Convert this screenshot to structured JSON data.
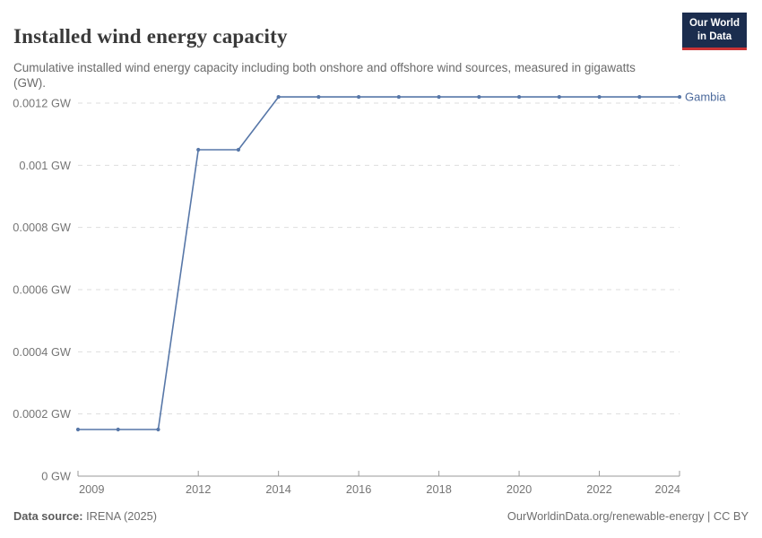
{
  "header": {
    "title": "Installed wind energy capacity",
    "subtitle": "Cumulative installed wind energy capacity including both onshore and offshore wind sources, measured in gigawatts (GW).",
    "logo": {
      "line1": "Our World",
      "line2": "in Data",
      "bg_color": "#1b2d4e",
      "accent_color": "#ca3335"
    }
  },
  "footer": {
    "data_source_label": "Data source:",
    "data_source_value": " IRENA (2025)",
    "attribution": "OurWorldinData.org/renewable-energy | CC BY"
  },
  "chart_data": {
    "type": "line",
    "title": "Installed wind energy capacity",
    "unit": "GW",
    "x": [
      2009,
      2010,
      2011,
      2012,
      2013,
      2014,
      2015,
      2016,
      2017,
      2018,
      2019,
      2020,
      2021,
      2022,
      2023,
      2024
    ],
    "series": [
      {
        "name": "Gambia",
        "color": "#5777a8",
        "values": [
          0.00015,
          0.00015,
          0.00015,
          0.00105,
          0.00105,
          0.00122,
          0.00122,
          0.00122,
          0.00122,
          0.00122,
          0.00122,
          0.00122,
          0.00122,
          0.00122,
          0.00122,
          0.00122
        ]
      }
    ],
    "xlabel": "",
    "ylabel": "",
    "xlim": [
      2009,
      2024
    ],
    "ylim": [
      0,
      0.00122
    ],
    "xticks": [
      2009,
      2012,
      2014,
      2016,
      2018,
      2020,
      2022,
      2024
    ],
    "yticks": [
      0,
      0.0002,
      0.0004,
      0.0006,
      0.0008,
      0.001,
      0.0012
    ],
    "ytick_suffix": " GW",
    "ytick_zero_label": "0 GW",
    "grid": "horizontal-dashed",
    "legend_position": "end-of-line-label",
    "colors": {
      "grid": "#dedede",
      "axis": "#999999",
      "tick_label": "#757575",
      "entity_label": "#4c6a9c"
    }
  }
}
